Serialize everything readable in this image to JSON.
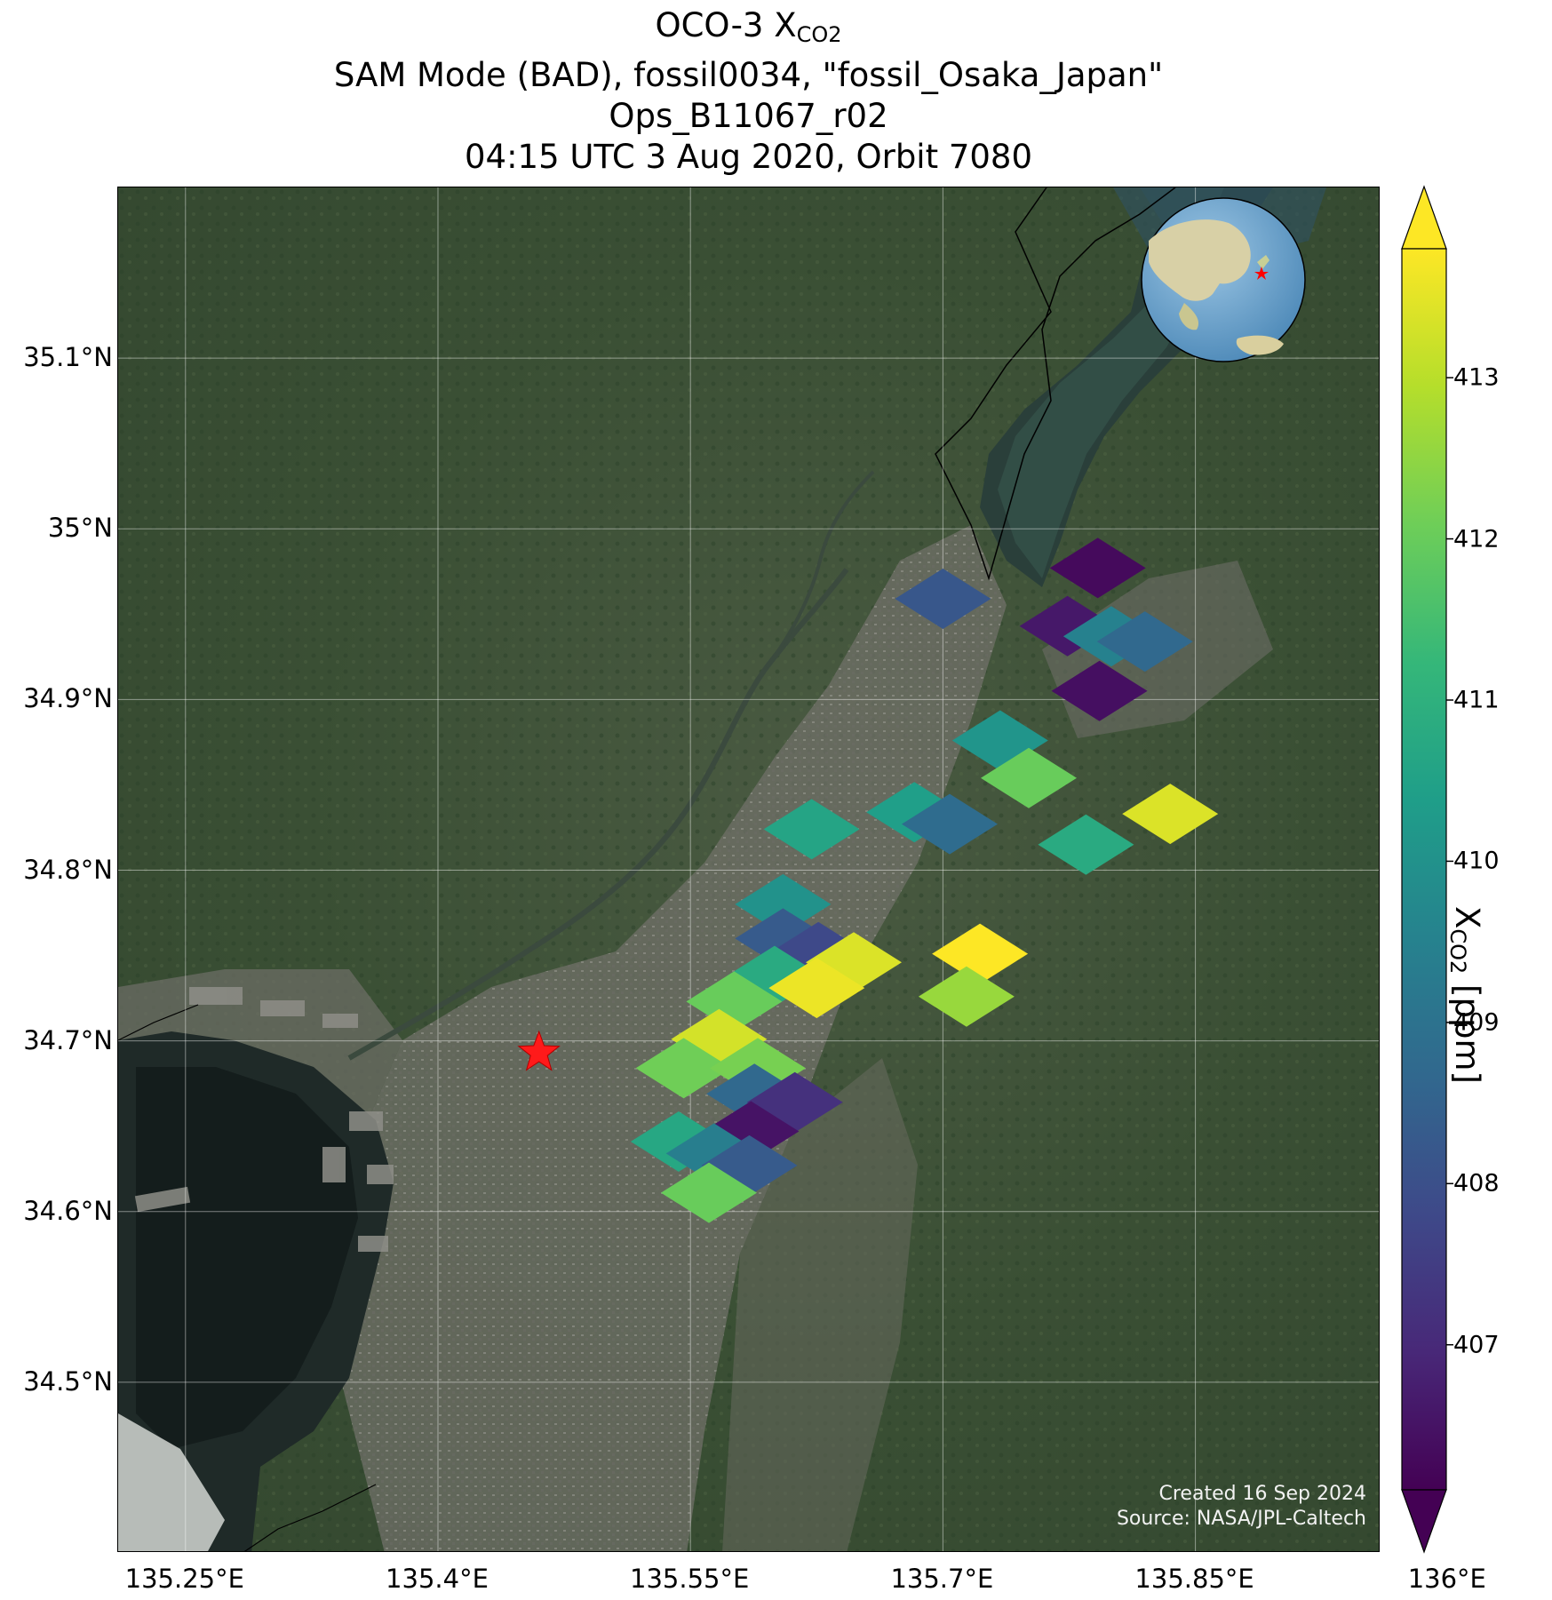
{
  "title": {
    "line1_prefix": "OCO-3 X",
    "line1_sub": "CO2",
    "line2": "SAM Mode (BAD), fossil0034, \"fossil_Osaka_Japan\"",
    "line3": "Ops_B11067_r02",
    "line4": "04:15 UTC 3 Aug 2020, Orbit 7080"
  },
  "credits": {
    "created": "Created 16 Sep 2024",
    "source": "Source: NASA/JPL-Caltech"
  },
  "colorbar": {
    "label_prefix": "X",
    "label_sub": "CO2",
    "label_suffix": " [ppm]",
    "min": 406.1,
    "max": 413.8,
    "ticks": [
      "407",
      "408",
      "409",
      "410",
      "411",
      "412",
      "413"
    ],
    "colormap": [
      "#440154",
      "#482878",
      "#3e4989",
      "#31688e",
      "#26828e",
      "#1f9e89",
      "#35b779",
      "#6ece58",
      "#b5de2b",
      "#fde725"
    ]
  },
  "map": {
    "lon_range": [
      135.21,
      135.96
    ],
    "lat_range": [
      34.4,
      35.2
    ],
    "lat_ticks": [
      {
        "value": 35.1,
        "label": "35.1°N"
      },
      {
        "value": 35.0,
        "label": "35°N"
      },
      {
        "value": 34.9,
        "label": "34.9°N"
      },
      {
        "value": 34.8,
        "label": "34.8°N"
      },
      {
        "value": 34.7,
        "label": "34.7°N"
      },
      {
        "value": 34.6,
        "label": "34.6°N"
      },
      {
        "value": 34.5,
        "label": "34.5°N"
      }
    ],
    "lon_ticks": [
      {
        "value": 135.25,
        "label": "135.25°E"
      },
      {
        "value": 135.4,
        "label": "135.4°E"
      },
      {
        "value": 135.55,
        "label": "135.55°E"
      },
      {
        "value": 135.7,
        "label": "135.7°E"
      },
      {
        "value": 135.85,
        "label": "135.85°E"
      },
      {
        "value": 136.0,
        "label": "136°E"
      }
    ],
    "target": {
      "lon": 135.46,
      "lat": 34.693,
      "marker": "red-star"
    },
    "soundings": [
      {
        "lon": 135.792,
        "lat": 34.977,
        "xco2": 406.3
      },
      {
        "lon": 135.7,
        "lat": 34.959,
        "xco2": 408.2
      },
      {
        "lon": 135.774,
        "lat": 34.943,
        "xco2": 406.6
      },
      {
        "lon": 135.8,
        "lat": 34.937,
        "xco2": 409.5
      },
      {
        "lon": 135.82,
        "lat": 34.934,
        "xco2": 408.7
      },
      {
        "lon": 135.793,
        "lat": 34.905,
        "xco2": 406.4
      },
      {
        "lon": 135.734,
        "lat": 34.876,
        "xco2": 410.1
      },
      {
        "lon": 135.751,
        "lat": 34.854,
        "xco2": 412.0
      },
      {
        "lon": 135.683,
        "lat": 34.834,
        "xco2": 410.4
      },
      {
        "lon": 135.704,
        "lat": 34.827,
        "xco2": 408.8
      },
      {
        "lon": 135.835,
        "lat": 34.833,
        "xco2": 413.4
      },
      {
        "lon": 135.622,
        "lat": 34.824,
        "xco2": 410.6
      },
      {
        "lon": 135.785,
        "lat": 34.815,
        "xco2": 410.8
      },
      {
        "lon": 135.605,
        "lat": 34.78,
        "xco2": 410.0
      },
      {
        "lon": 135.605,
        "lat": 34.76,
        "xco2": 408.3
      },
      {
        "lon": 135.626,
        "lat": 34.752,
        "xco2": 407.8
      },
      {
        "lon": 135.647,
        "lat": 34.746,
        "xco2": 413.4
      },
      {
        "lon": 135.722,
        "lat": 34.751,
        "xco2": 413.8
      },
      {
        "lon": 135.6,
        "lat": 34.738,
        "xco2": 410.8
      },
      {
        "lon": 135.625,
        "lat": 34.731,
        "xco2": 413.6
      },
      {
        "lon": 135.576,
        "lat": 34.723,
        "xco2": 412.0
      },
      {
        "lon": 135.714,
        "lat": 34.726,
        "xco2": 412.6
      },
      {
        "lon": 135.567,
        "lat": 34.701,
        "xco2": 413.3
      },
      {
        "lon": 135.546,
        "lat": 34.684,
        "xco2": 412.1
      },
      {
        "lon": 135.59,
        "lat": 34.684,
        "xco2": 412.2
      },
      {
        "lon": 135.588,
        "lat": 34.669,
        "xco2": 408.7
      },
      {
        "lon": 135.612,
        "lat": 34.664,
        "xco2": 407.2
      },
      {
        "lon": 135.586,
        "lat": 34.647,
        "xco2": 406.5
      },
      {
        "lon": 135.543,
        "lat": 34.641,
        "xco2": 410.7
      },
      {
        "lon": 135.564,
        "lat": 34.634,
        "xco2": 409.4
      },
      {
        "lon": 135.585,
        "lat": 34.627,
        "xco2": 408.3
      },
      {
        "lon": 135.561,
        "lat": 34.611,
        "xco2": 412.0
      }
    ]
  }
}
